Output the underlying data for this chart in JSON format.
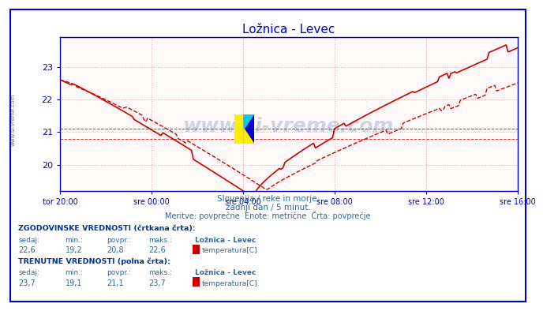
{
  "title": "Ložnica - Levec",
  "subtitle1": "Slovenija / reke in morje.",
  "subtitle2": "zadnji dan / 5 minut.",
  "subtitle3": "Meritve: povprečne  Enote: metrične  Črta: povprečje",
  "xlabel_ticks": [
    "tor 20:00",
    "sre 00:00",
    "sre 04:00",
    "sre 08:00",
    "sre 12:00",
    "sre 16:00"
  ],
  "xlabel_tick_positions": [
    0,
    4,
    8,
    12,
    16,
    20
  ],
  "yticks": [
    20,
    21,
    22,
    23
  ],
  "ymin": 19.2,
  "ymax": 23.9,
  "xmin": 0,
  "xmax": 20,
  "hist_avg": 20.8,
  "curr_avg": 21.1,
  "title_color": "#0000cc",
  "line_color": "#cc0000",
  "axis_color": "#0000cc",
  "label_color": "#336699",
  "grid_color": "#ddaaaa",
  "bg_color": "#ffffff",
  "plot_bg_color": "#fff8f8",
  "watermark_text": "www.si-vreme.com",
  "legend_label1": "ZGODOVINSKE VREDNOSTI (črtkana črta):",
  "legend_label2": "TRENUTNE VREDNOSTI (polna črta):",
  "col_headers": [
    "sedaj:",
    "min.:",
    "povpr.:",
    "maks.:",
    "Ložnica - Levec"
  ],
  "hist_row": [
    "22,6",
    "19,2",
    "20,8",
    "22,6"
  ],
  "curr_row": [
    "23,7",
    "19,1",
    "21,1",
    "23,7"
  ],
  "series_label": "temperatura[C]",
  "bold_color": "#003399"
}
